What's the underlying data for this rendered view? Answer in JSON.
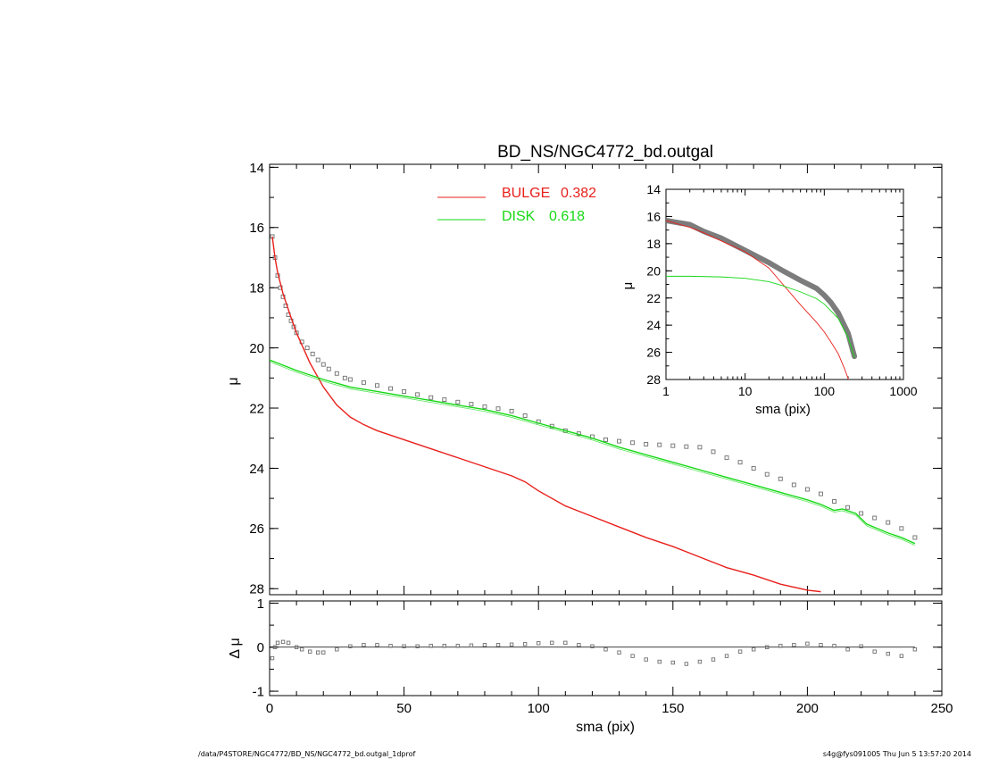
{
  "chart_data": {
    "title": "BD_NS/NGC4772_bd.outgal",
    "footer_left": "/data/P4STORE/NGC4772/BD_NS/NGC4772_bd.outgal_1dprof",
    "footer_right": "s4g@fys091005  Thu Jun  5 13:57:20 2014",
    "colors": {
      "bulge": "#e8201c",
      "disk": "#16d816",
      "data": "#6e6e6e",
      "axes": "#000000"
    },
    "panels": [
      {
        "name": "main",
        "type": "line",
        "xlabel": "",
        "ylabel": "μ",
        "xlim": [
          0,
          250
        ],
        "ylim": [
          28.2,
          13.9
        ],
        "yticks": [
          "14",
          "16",
          "18",
          "20",
          "22",
          "24",
          "26",
          "28"
        ],
        "legend": {
          "placement": "top-center",
          "entries": [
            {
              "label": "BULGE",
              "value": "0.382",
              "series": "bulge"
            },
            {
              "label": "DISK",
              "value": "0.618",
              "series": "disk"
            }
          ]
        },
        "series": [
          {
            "key": "data",
            "style": "squares",
            "x": [
              1,
              2,
              3,
              4,
              5,
              6,
              7,
              8,
              9,
              10,
              12,
              14,
              16,
              18,
              20,
              22,
              25,
              28,
              30,
              35,
              40,
              45,
              50,
              55,
              60,
              65,
              70,
              75,
              80,
              85,
              90,
              95,
              100,
              105,
              110,
              115,
              120,
              125,
              130,
              135,
              140,
              145,
              150,
              155,
              160,
              165,
              170,
              175,
              180,
              185,
              190,
              195,
              200,
              205,
              210,
              215,
              220,
              225,
              230,
              235,
              240
            ],
            "y": [
              16.3,
              17.0,
              17.6,
              18.0,
              18.3,
              18.6,
              18.9,
              19.1,
              19.3,
              19.5,
              19.8,
              20.0,
              20.2,
              20.4,
              20.55,
              20.7,
              20.85,
              21.0,
              21.05,
              21.15,
              21.25,
              21.35,
              21.45,
              21.55,
              21.65,
              21.72,
              21.8,
              21.87,
              21.95,
              22.02,
              22.1,
              22.25,
              22.45,
              22.6,
              22.75,
              22.85,
              22.95,
              23.05,
              23.1,
              23.15,
              23.2,
              23.22,
              23.25,
              23.28,
              23.3,
              23.45,
              23.65,
              23.8,
              24.0,
              24.2,
              24.35,
              24.55,
              24.7,
              24.85,
              25.1,
              25.3,
              25.5,
              25.65,
              25.8,
              26.0,
              26.3
            ]
          },
          {
            "key": "bulge",
            "style": "line",
            "x": [
              1,
              2,
              3,
              5,
              8,
              10,
              15,
              20,
              25,
              30,
              35,
              40,
              50,
              60,
              70,
              80,
              90,
              95,
              100,
              110,
              120,
              130,
              140,
              150,
              160,
              170,
              180,
              190,
              200,
              205
            ],
            "y": [
              16.3,
              17.0,
              17.5,
              18.2,
              19.0,
              19.5,
              20.5,
              21.3,
              21.9,
              22.3,
              22.55,
              22.75,
              23.05,
              23.35,
              23.65,
              23.95,
              24.25,
              24.45,
              24.75,
              25.25,
              25.6,
              25.95,
              26.3,
              26.6,
              26.95,
              27.3,
              27.55,
              27.85,
              28.05,
              28.1
            ]
          },
          {
            "key": "disk",
            "style": "line",
            "x": [
              0,
              10,
              20,
              30,
              40,
              50,
              60,
              70,
              80,
              90,
              100,
              110,
              120,
              130,
              140,
              150,
              160,
              170,
              180,
              190,
              200,
              205,
              210,
              213,
              218,
              222,
              226,
              230,
              235,
              240
            ],
            "y": [
              20.4,
              20.75,
              21.05,
              21.3,
              21.45,
              21.6,
              21.75,
              21.9,
              22.05,
              22.25,
              22.5,
              22.75,
              23.0,
              23.3,
              23.55,
              23.8,
              24.05,
              24.3,
              24.55,
              24.8,
              25.05,
              25.2,
              25.4,
              25.35,
              25.5,
              25.85,
              26.0,
              26.15,
              26.3,
              26.5
            ]
          }
        ]
      },
      {
        "name": "inset",
        "type": "line",
        "xlabel": "sma (pix)",
        "ylabel": "μ",
        "xscale": "log",
        "xlim": [
          1,
          1000
        ],
        "ylim": [
          28,
          14
        ],
        "xticks": [
          "1",
          "10",
          "100",
          "1000"
        ],
        "yticks": [
          "14",
          "16",
          "18",
          "20",
          "22",
          "24",
          "26",
          "28"
        ],
        "series": [
          {
            "key": "data",
            "style": "band",
            "x": [
              1,
              2,
              3,
              5,
              10,
              20,
              30,
              50,
              80,
              100,
              120,
              150,
              200,
              240
            ],
            "y": [
              16.3,
              16.6,
              17.1,
              17.6,
              18.5,
              19.4,
              20.0,
              20.7,
              21.3,
              21.8,
              22.3,
              23.1,
              24.6,
              26.3
            ]
          },
          {
            "key": "bulge",
            "style": "line",
            "x": [
              1,
              2,
              3,
              5,
              10,
              20,
              30,
              50,
              80,
              100,
              120,
              150,
              180,
              205
            ],
            "y": [
              16.3,
              16.8,
              17.2,
              17.8,
              18.6,
              19.8,
              21.0,
              22.5,
              23.8,
              24.5,
              25.2,
              26.1,
              27.2,
              28.1
            ]
          },
          {
            "key": "disk",
            "style": "line",
            "x": [
              1,
              2,
              5,
              10,
              20,
              30,
              50,
              80,
              100,
              150,
              200,
              240
            ],
            "y": [
              20.4,
              20.4,
              20.45,
              20.55,
              20.8,
              21.1,
              21.55,
              22.05,
              22.45,
              23.5,
              24.9,
              26.4
            ]
          }
        ]
      },
      {
        "name": "residual",
        "type": "scatter",
        "xlabel": "sma (pix)",
        "ylabel": "Δ μ",
        "xlim": [
          0,
          250
        ],
        "ylim": [
          -1.1,
          1.05
        ],
        "xticks": [
          "0",
          "50",
          "100",
          "150",
          "200",
          "250"
        ],
        "yticks": [
          "1",
          "0",
          "-1"
        ],
        "series": [
          {
            "key": "data",
            "style": "squares",
            "x": [
              1,
              2,
              3,
              5,
              7,
              10,
              12,
              15,
              18,
              20,
              25,
              30,
              35,
              40,
              45,
              50,
              55,
              60,
              65,
              70,
              75,
              80,
              85,
              90,
              95,
              100,
              105,
              110,
              115,
              120,
              125,
              130,
              135,
              140,
              145,
              150,
              155,
              160,
              165,
              170,
              175,
              180,
              185,
              190,
              195,
              200,
              205,
              210,
              215,
              220,
              225,
              230,
              235,
              240
            ],
            "y": [
              -0.25,
              0.0,
              0.1,
              0.12,
              0.1,
              0.0,
              -0.05,
              -0.1,
              -0.12,
              -0.12,
              -0.05,
              0.02,
              0.05,
              0.05,
              0.03,
              0.02,
              0.02,
              0.03,
              0.03,
              0.03,
              0.04,
              0.05,
              0.05,
              0.06,
              0.07,
              0.09,
              0.1,
              0.1,
              0.05,
              0.02,
              -0.05,
              -0.12,
              -0.2,
              -0.28,
              -0.33,
              -0.35,
              -0.38,
              -0.33,
              -0.28,
              -0.2,
              -0.1,
              -0.05,
              0.0,
              0.03,
              0.05,
              0.08,
              0.05,
              0.03,
              -0.05,
              0.02,
              -0.1,
              -0.15,
              -0.2,
              -0.05
            ]
          }
        ]
      }
    ]
  }
}
